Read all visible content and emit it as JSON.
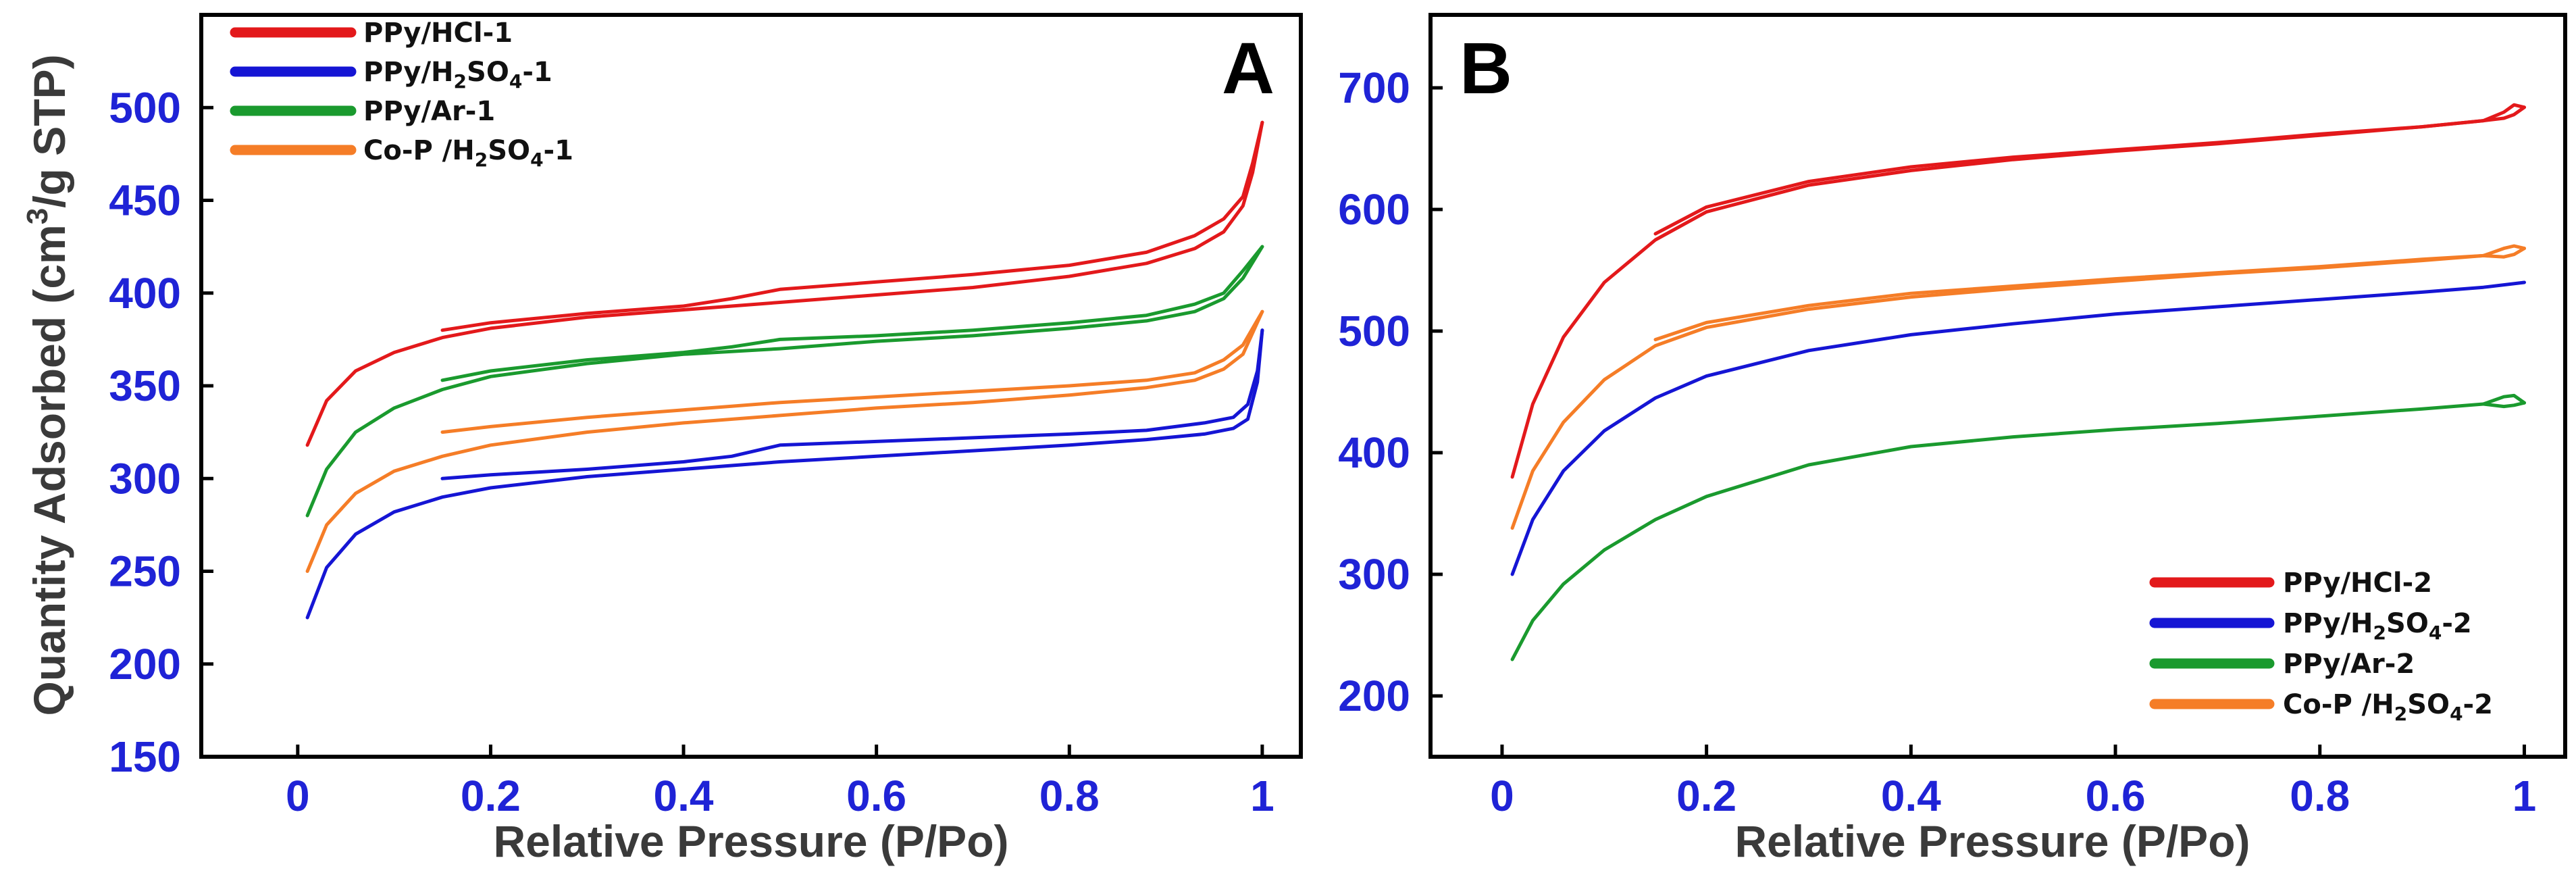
{
  "chart_data": [
    {
      "panel": "A",
      "type": "line",
      "xlabel": "Relative Pressure (P/Po)",
      "ylabel_parts": [
        "Quantity Adsorbed (cm",
        "3",
        "/g STP)"
      ],
      "xlim": [
        -0.1,
        1.04
      ],
      "ylim": [
        150,
        550
      ],
      "xticks": [
        0,
        0.2,
        0.4,
        0.6,
        0.8,
        1
      ],
      "xtick_labels": [
        "0",
        "0.2",
        "0.4",
        "0.6",
        "0.8",
        "1"
      ],
      "yticks": [
        150,
        200,
        250,
        300,
        350,
        400,
        450,
        500
      ],
      "ytick_labels": [
        "150",
        "200",
        "250",
        "300",
        "350",
        "400",
        "450",
        "500"
      ],
      "legend_position": "top-left",
      "series": [
        {
          "name": "PPy/HCl-1",
          "legend_parts": [
            [
              "PPy/HCl-1",
              ""
            ]
          ],
          "color": "#e3191b",
          "adsorption": [
            [
              0.01,
              318
            ],
            [
              0.03,
              342
            ],
            [
              0.06,
              358
            ],
            [
              0.1,
              368
            ],
            [
              0.15,
              376
            ],
            [
              0.2,
              381
            ],
            [
              0.3,
              387
            ],
            [
              0.4,
              391
            ],
            [
              0.5,
              395
            ],
            [
              0.6,
              399
            ],
            [
              0.7,
              403
            ],
            [
              0.8,
              409
            ],
            [
              0.88,
              416
            ],
            [
              0.93,
              424
            ],
            [
              0.96,
              433
            ],
            [
              0.98,
              447
            ],
            [
              0.99,
              465
            ],
            [
              1.0,
              492
            ]
          ],
          "desorption": [
            [
              1.0,
              492
            ],
            [
              0.99,
              470
            ],
            [
              0.98,
              452
            ],
            [
              0.96,
              440
            ],
            [
              0.93,
              431
            ],
            [
              0.88,
              422
            ],
            [
              0.8,
              415
            ],
            [
              0.7,
              410
            ],
            [
              0.6,
              406
            ],
            [
              0.5,
              402
            ],
            [
              0.45,
              397
            ],
            [
              0.4,
              393
            ],
            [
              0.3,
              389
            ],
            [
              0.2,
              384
            ],
            [
              0.15,
              380
            ]
          ]
        },
        {
          "name": "PPy/H2SO4-1",
          "legend_parts": [
            [
              "PPy/H",
              ""
            ],
            [
              "2",
              "sub"
            ],
            [
              "SO",
              ""
            ],
            [
              "4",
              "sub"
            ],
            [
              "-1",
              ""
            ]
          ],
          "color": "#1515d4",
          "adsorption": [
            [
              0.01,
              225
            ],
            [
              0.03,
              252
            ],
            [
              0.06,
              270
            ],
            [
              0.1,
              282
            ],
            [
              0.15,
              290
            ],
            [
              0.2,
              295
            ],
            [
              0.3,
              301
            ],
            [
              0.4,
              305
            ],
            [
              0.5,
              309
            ],
            [
              0.6,
              312
            ],
            [
              0.7,
              315
            ],
            [
              0.8,
              318
            ],
            [
              0.88,
              321
            ],
            [
              0.94,
              324
            ],
            [
              0.97,
              327
            ],
            [
              0.985,
              332
            ],
            [
              0.995,
              352
            ],
            [
              1.0,
              380
            ]
          ],
          "desorption": [
            [
              1.0,
              380
            ],
            [
              0.995,
              358
            ],
            [
              0.985,
              340
            ],
            [
              0.97,
              333
            ],
            [
              0.94,
              330
            ],
            [
              0.88,
              326
            ],
            [
              0.8,
              324
            ],
            [
              0.7,
              322
            ],
            [
              0.6,
              320
            ],
            [
              0.5,
              318
            ],
            [
              0.45,
              312
            ],
            [
              0.4,
              309
            ],
            [
              0.3,
              305
            ],
            [
              0.2,
              302
            ],
            [
              0.15,
              300
            ]
          ]
        },
        {
          "name": "PPy/Ar-1",
          "legend_parts": [
            [
              "PPy/Ar-1",
              ""
            ]
          ],
          "color": "#1a9a2e",
          "adsorption": [
            [
              0.01,
              280
            ],
            [
              0.03,
              305
            ],
            [
              0.06,
              325
            ],
            [
              0.1,
              338
            ],
            [
              0.15,
              348
            ],
            [
              0.2,
              355
            ],
            [
              0.3,
              362
            ],
            [
              0.4,
              367
            ],
            [
              0.5,
              370
            ],
            [
              0.6,
              374
            ],
            [
              0.7,
              377
            ],
            [
              0.8,
              381
            ],
            [
              0.88,
              385
            ],
            [
              0.93,
              390
            ],
            [
              0.96,
              397
            ],
            [
              0.98,
              408
            ],
            [
              1.0,
              425
            ]
          ],
          "desorption": [
            [
              1.0,
              425
            ],
            [
              0.98,
              412
            ],
            [
              0.96,
              400
            ],
            [
              0.93,
              394
            ],
            [
              0.88,
              388
            ],
            [
              0.8,
              384
            ],
            [
              0.7,
              380
            ],
            [
              0.6,
              377
            ],
            [
              0.5,
              375
            ],
            [
              0.45,
              371
            ],
            [
              0.4,
              368
            ],
            [
              0.3,
              364
            ],
            [
              0.2,
              358
            ],
            [
              0.15,
              353
            ]
          ]
        },
        {
          "name": "Co-P /H2SO4-1",
          "legend_parts": [
            [
              "Co-P /H",
              ""
            ],
            [
              "2",
              "sub"
            ],
            [
              "SO",
              ""
            ],
            [
              "4",
              "sub"
            ],
            [
              "-1",
              ""
            ]
          ],
          "color": "#f57d27",
          "adsorption": [
            [
              0.01,
              250
            ],
            [
              0.03,
              275
            ],
            [
              0.06,
              292
            ],
            [
              0.1,
              304
            ],
            [
              0.15,
              312
            ],
            [
              0.2,
              318
            ],
            [
              0.3,
              325
            ],
            [
              0.4,
              330
            ],
            [
              0.5,
              334
            ],
            [
              0.6,
              338
            ],
            [
              0.7,
              341
            ],
            [
              0.8,
              345
            ],
            [
              0.88,
              349
            ],
            [
              0.93,
              353
            ],
            [
              0.96,
              359
            ],
            [
              0.98,
              367
            ],
            [
              1.0,
              390
            ]
          ],
          "desorption": [
            [
              1.0,
              390
            ],
            [
              0.98,
              372
            ],
            [
              0.96,
              364
            ],
            [
              0.93,
              357
            ],
            [
              0.88,
              353
            ],
            [
              0.8,
              350
            ],
            [
              0.7,
              347
            ],
            [
              0.6,
              344
            ],
            [
              0.5,
              341
            ],
            [
              0.45,
              339
            ],
            [
              0.4,
              337
            ],
            [
              0.3,
              333
            ],
            [
              0.2,
              328
            ],
            [
              0.15,
              325
            ]
          ]
        }
      ]
    },
    {
      "panel": "B",
      "type": "line",
      "xlabel": "Relative Pressure (P/Po)",
      "xlim": [
        -0.07,
        1.04
      ],
      "ylim": [
        150,
        760
      ],
      "xticks": [
        0,
        0.2,
        0.4,
        0.6,
        0.8,
        1
      ],
      "xtick_labels": [
        "0",
        "0.2",
        "0.4",
        "0.6",
        "0.8",
        "1"
      ],
      "yticks": [
        200,
        300,
        400,
        500,
        600,
        700
      ],
      "ytick_labels": [
        "200",
        "300",
        "400",
        "500",
        "600",
        "700"
      ],
      "legend_position": "bottom-right",
      "series": [
        {
          "name": "PPy/HCl-2",
          "legend_parts": [
            [
              "PPy/HCl-2",
              ""
            ]
          ],
          "color": "#e3191b",
          "adsorption": [
            [
              0.01,
              380
            ],
            [
              0.03,
              440
            ],
            [
              0.06,
              495
            ],
            [
              0.1,
              540
            ],
            [
              0.15,
              575
            ],
            [
              0.2,
              598
            ],
            [
              0.3,
              620
            ],
            [
              0.4,
              632
            ],
            [
              0.5,
              641
            ],
            [
              0.6,
              648
            ],
            [
              0.7,
              654
            ],
            [
              0.8,
              661
            ],
            [
              0.9,
              668
            ],
            [
              0.96,
              673
            ],
            [
              0.98,
              680
            ],
            [
              0.99,
              686
            ],
            [
              1.0,
              684
            ]
          ],
          "desorption": [
            [
              1.0,
              684
            ],
            [
              0.99,
              678
            ],
            [
              0.98,
              675
            ],
            [
              0.96,
              673
            ],
            [
              0.9,
              668
            ],
            [
              0.8,
              662
            ],
            [
              0.7,
              655
            ],
            [
              0.6,
              649
            ],
            [
              0.5,
              643
            ],
            [
              0.4,
              635
            ],
            [
              0.3,
              623
            ],
            [
              0.2,
              602
            ],
            [
              0.15,
              580
            ]
          ]
        },
        {
          "name": "PPy/H2SO4-2",
          "legend_parts": [
            [
              "PPy/H",
              ""
            ],
            [
              "2",
              "sub"
            ],
            [
              "SO",
              ""
            ],
            [
              "4",
              "sub"
            ],
            [
              "-2",
              ""
            ]
          ],
          "color": "#1515d4",
          "adsorption": [
            [
              0.01,
              300
            ],
            [
              0.03,
              345
            ],
            [
              0.06,
              385
            ],
            [
              0.1,
              418
            ],
            [
              0.15,
              445
            ],
            [
              0.2,
              463
            ],
            [
              0.3,
              484
            ],
            [
              0.4,
              497
            ],
            [
              0.5,
              506
            ],
            [
              0.6,
              514
            ],
            [
              0.7,
              520
            ],
            [
              0.8,
              526
            ],
            [
              0.9,
              532
            ],
            [
              0.96,
              536
            ],
            [
              1.0,
              540
            ]
          ],
          "desorption": []
        },
        {
          "name": "PPy/Ar-2",
          "legend_parts": [
            [
              "PPy/Ar-2",
              ""
            ]
          ],
          "color": "#1a9a2e",
          "adsorption": [
            [
              0.01,
              230
            ],
            [
              0.03,
              262
            ],
            [
              0.06,
              292
            ],
            [
              0.1,
              320
            ],
            [
              0.15,
              345
            ],
            [
              0.2,
              364
            ],
            [
              0.3,
              390
            ],
            [
              0.4,
              405
            ],
            [
              0.5,
              413
            ],
            [
              0.6,
              419
            ],
            [
              0.7,
              424
            ],
            [
              0.8,
              430
            ],
            [
              0.9,
              436
            ],
            [
              0.96,
              440
            ],
            [
              0.98,
              446
            ],
            [
              0.99,
              447
            ],
            [
              1.0,
              441
            ]
          ],
          "desorption": [
            [
              1.0,
              441
            ],
            [
              0.99,
              439
            ],
            [
              0.98,
              438
            ],
            [
              0.96,
              440
            ]
          ]
        },
        {
          "name": "Co-P /H2SO4-2",
          "legend_parts": [
            [
              "Co-P /H",
              ""
            ],
            [
              "2",
              "sub"
            ],
            [
              "SO",
              ""
            ],
            [
              "4",
              "sub"
            ],
            [
              "-2",
              ""
            ]
          ],
          "color": "#f57d27",
          "adsorption": [
            [
              0.01,
              338
            ],
            [
              0.03,
              385
            ],
            [
              0.06,
              425
            ],
            [
              0.1,
              460
            ],
            [
              0.15,
              488
            ],
            [
              0.2,
              503
            ],
            [
              0.3,
              518
            ],
            [
              0.4,
              528
            ],
            [
              0.5,
              535
            ],
            [
              0.6,
              541
            ],
            [
              0.7,
              547
            ],
            [
              0.8,
              552
            ],
            [
              0.9,
              558
            ],
            [
              0.96,
              562
            ],
            [
              0.98,
              568
            ],
            [
              0.99,
              570
            ],
            [
              1.0,
              568
            ]
          ],
          "desorption": [
            [
              1.0,
              568
            ],
            [
              0.99,
              563
            ],
            [
              0.98,
              561
            ],
            [
              0.96,
              562
            ],
            [
              0.9,
              559
            ],
            [
              0.8,
              553
            ],
            [
              0.7,
              548
            ],
            [
              0.6,
              543
            ],
            [
              0.5,
              537
            ],
            [
              0.4,
              531
            ],
            [
              0.3,
              521
            ],
            [
              0.2,
              507
            ],
            [
              0.15,
              493
            ]
          ]
        }
      ]
    }
  ]
}
